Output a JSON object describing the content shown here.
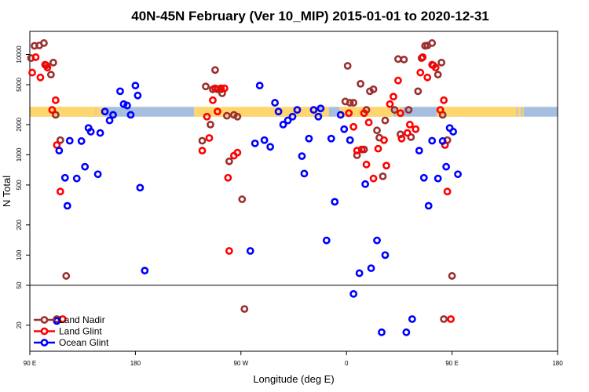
{
  "chart_data": {
    "type": "scatter",
    "title": "40N-45N February (Ver 10_MIP)   2015-01-01 to 2020-12-31",
    "xlabel": "Longitude (deg E)",
    "ylabel": "N Total",
    "x_unrolled_range": [
      90,
      540
    ],
    "x_ticks": [
      {
        "value": 90,
        "label": "90 E"
      },
      {
        "value": 180,
        "label": "180"
      },
      {
        "value": 270,
        "label": "90 W"
      },
      {
        "value": 360,
        "label": "0"
      },
      {
        "value": 450,
        "label": "90 E"
      },
      {
        "value": 540,
        "label": "180"
      }
    ],
    "ylim": [
      11,
      17000
    ],
    "y_scale": "log",
    "y_threshold": 50,
    "y_ticks": [
      {
        "value": 20,
        "label": "20"
      },
      {
        "value": 50,
        "label": "50"
      },
      {
        "value": 100,
        "label": "100"
      },
      {
        "value": 200,
        "label": "200"
      },
      {
        "value": 500,
        "label": "500"
      },
      {
        "value": 1000,
        "label": "1000"
      },
      {
        "value": 2000,
        "label": "2000"
      },
      {
        "value": 5000,
        "label": "5000"
      },
      {
        "value": 10000,
        "label": "10000"
      }
    ],
    "surface_bar": {
      "y_range": [
        2400,
        3000
      ],
      "ocean_color": "#a6bedf",
      "land_color": "#ffd66e",
      "land_segments": [
        [
          90,
          146
        ],
        [
          147,
          148
        ],
        [
          148,
          153
        ],
        [
          146.5,
          147.5
        ],
        [
          145,
          146
        ],
        [
          144,
          145
        ],
        [
          143,
          144
        ],
        [
          230,
          337
        ],
        [
          330,
          331
        ],
        [
          332,
          333
        ],
        [
          334,
          335
        ],
        [
          339,
          345
        ],
        [
          354,
          360
        ],
        [
          360,
          400
        ],
        [
          402,
          404
        ],
        [
          404,
          406
        ],
        [
          407,
          408
        ],
        [
          437,
          505
        ],
        [
          506,
          508
        ],
        [
          508,
          509
        ],
        [
          510,
          511
        ]
      ]
    },
    "series": [
      {
        "name": "Land Nadir",
        "color": "#9b2f2f",
        "points": [
          [
            91,
            9200
          ],
          [
            94,
            12200
          ],
          [
            98,
            12300
          ],
          [
            102,
            13000
          ],
          [
            104,
            7800
          ],
          [
            108,
            6300
          ],
          [
            110,
            8300
          ],
          [
            112,
            2500
          ],
          [
            113,
            23
          ],
          [
            116,
            1400
          ],
          [
            121,
            62
          ],
          [
            237,
            1380
          ],
          [
            240,
            4800
          ],
          [
            244,
            2000
          ],
          [
            246,
            4500
          ],
          [
            248,
            7000
          ],
          [
            250,
            4500
          ],
          [
            253,
            4500
          ],
          [
            254,
            4100
          ],
          [
            258,
            2450
          ],
          [
            260,
            860
          ],
          [
            264,
            2500
          ],
          [
            267,
            2400
          ],
          [
            271,
            360
          ],
          [
            273,
            29
          ],
          [
            359,
            3400
          ],
          [
            361,
            7700
          ],
          [
            363,
            3300
          ],
          [
            366,
            3300
          ],
          [
            369,
            990
          ],
          [
            372,
            5100
          ],
          [
            375,
            1130
          ],
          [
            377,
            2800
          ],
          [
            380,
            4300
          ],
          [
            383,
            4500
          ],
          [
            386,
            1750
          ],
          [
            388,
            1480
          ],
          [
            391,
            610
          ],
          [
            393,
            2200
          ],
          [
            401,
            2800
          ],
          [
            404,
            9000
          ],
          [
            406,
            1600
          ],
          [
            409,
            8900
          ],
          [
            413,
            2800
          ],
          [
            415,
            1500
          ],
          [
            421,
            4300
          ],
          [
            424,
            9200
          ],
          [
            427,
            12200
          ],
          [
            429,
            12300
          ],
          [
            433,
            13000
          ],
          [
            434,
            7800
          ],
          [
            438,
            6300
          ],
          [
            441,
            8300
          ],
          [
            442,
            2500
          ],
          [
            443,
            23
          ],
          [
            446,
            1400
          ],
          [
            450,
            62
          ]
        ]
      },
      {
        "name": "Land Glint",
        "color": "#ff0000",
        "points": [
          [
            92,
            6600
          ],
          [
            95,
            9400
          ],
          [
            99,
            5900
          ],
          [
            103,
            7900
          ],
          [
            105,
            7400
          ],
          [
            109,
            2800
          ],
          [
            112,
            3500
          ],
          [
            113,
            1250
          ],
          [
            118,
            23
          ],
          [
            116,
            430
          ],
          [
            237,
            1100
          ],
          [
            241,
            2400
          ],
          [
            243,
            1470
          ],
          [
            246,
            3500
          ],
          [
            248,
            4600
          ],
          [
            250,
            2700
          ],
          [
            253,
            4600
          ],
          [
            256,
            4600
          ],
          [
            259,
            590
          ],
          [
            260,
            110
          ],
          [
            264,
            980
          ],
          [
            267,
            1050
          ],
          [
            362,
            2600
          ],
          [
            366,
            1900
          ],
          [
            369,
            1100
          ],
          [
            373,
            1130
          ],
          [
            375,
            2600
          ],
          [
            377,
            800
          ],
          [
            379,
            2100
          ],
          [
            383,
            580
          ],
          [
            387,
            1150
          ],
          [
            392,
            1400
          ],
          [
            394,
            780
          ],
          [
            397,
            3200
          ],
          [
            400,
            3800
          ],
          [
            404,
            5500
          ],
          [
            406,
            2600
          ],
          [
            407,
            1450
          ],
          [
            412,
            1650
          ],
          [
            414,
            2000
          ],
          [
            419,
            1800
          ],
          [
            423,
            6600
          ],
          [
            425,
            9400
          ],
          [
            429,
            5900
          ],
          [
            433,
            7900
          ],
          [
            436,
            7400
          ],
          [
            440,
            2800
          ],
          [
            443,
            3500
          ],
          [
            444,
            1250
          ],
          [
            446,
            430
          ],
          [
            449,
            23
          ]
        ]
      },
      {
        "name": "Ocean Glint",
        "color": "#0000ff",
        "points": [
          [
            113,
            22
          ],
          [
            115,
            1100
          ],
          [
            120,
            590
          ],
          [
            122,
            310
          ],
          [
            124,
            1380
          ],
          [
            130,
            580
          ],
          [
            134,
            1370
          ],
          [
            137,
            760
          ],
          [
            140,
            1850
          ],
          [
            142,
            1700
          ],
          [
            148,
            640
          ],
          [
            150,
            1650
          ],
          [
            154,
            2700
          ],
          [
            158,
            2200
          ],
          [
            161,
            2500
          ],
          [
            167,
            4300
          ],
          [
            170,
            3200
          ],
          [
            173,
            3100
          ],
          [
            176,
            2500
          ],
          [
            180,
            4900
          ],
          [
            182,
            3900
          ],
          [
            184,
            470
          ],
          [
            188,
            70
          ],
          [
            278,
            110
          ],
          [
            282,
            1300
          ],
          [
            286,
            4900
          ],
          [
            290,
            1400
          ],
          [
            295,
            1200
          ],
          [
            299,
            3300
          ],
          [
            302,
            2700
          ],
          [
            306,
            2000
          ],
          [
            310,
            2200
          ],
          [
            314,
            2400
          ],
          [
            318,
            2800
          ],
          [
            322,
            970
          ],
          [
            324,
            650
          ],
          [
            328,
            1450
          ],
          [
            332,
            2800
          ],
          [
            336,
            2400
          ],
          [
            338,
            2900
          ],
          [
            343,
            140
          ],
          [
            347,
            1450
          ],
          [
            350,
            340
          ],
          [
            355,
            2500
          ],
          [
            358,
            1800
          ],
          [
            363,
            1400
          ],
          [
            366,
            41
          ],
          [
            371,
            66
          ],
          [
            376,
            510
          ],
          [
            381,
            74
          ],
          [
            386,
            140
          ],
          [
            390,
            17
          ],
          [
            393,
            100
          ],
          [
            411,
            17
          ],
          [
            416,
            23
          ],
          [
            422,
            1100
          ],
          [
            426,
            590
          ],
          [
            430,
            310
          ],
          [
            433,
            1380
          ],
          [
            438,
            580
          ],
          [
            442,
            1370
          ],
          [
            445,
            760
          ],
          [
            448,
            1850
          ],
          [
            451,
            1700
          ],
          [
            455,
            640
          ]
        ]
      }
    ],
    "legend": {
      "position": "bottom-left",
      "entries": [
        "Land Nadir",
        "Land Glint",
        "Ocean Glint"
      ]
    }
  }
}
